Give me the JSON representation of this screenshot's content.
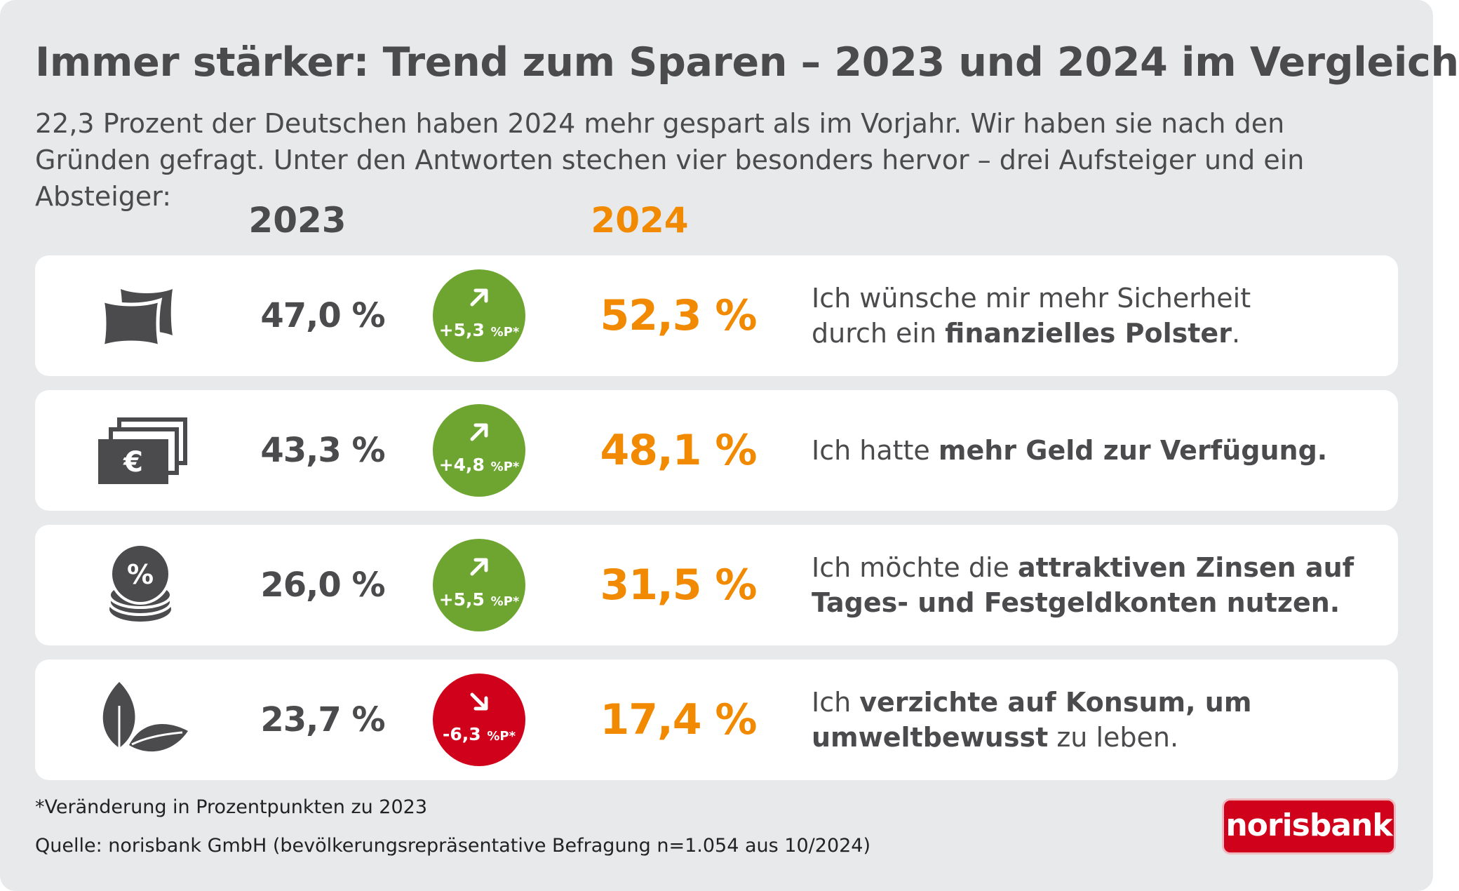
{
  "colors": {
    "background": "#e8e9eb",
    "text": "#4b4b4d",
    "accent_2024": "#f18a00",
    "increase": "#6da530",
    "decrease": "#d0021b",
    "brand": "#d0021b"
  },
  "header": {
    "title": "Immer stärker: Trend zum Sparen – 2023 und 2024 im Vergleich",
    "subtitle": "22,3 Prozent der Deutschen haben 2024 mehr gespart als im Vorjahr. Wir haben sie nach den Gründen gefragt. Unter den Antworten stechen vier besonders hervor – drei Aufsteiger und ein Absteiger:"
  },
  "columns": {
    "year_a": "2023",
    "year_b": "2024"
  },
  "rows": [
    {
      "icon": "pillow-icon",
      "value_2023": "47,0 %",
      "change": "+5,3",
      "change_unit": "%P*",
      "direction": "up",
      "value_2024": "52,3 %",
      "reason_line1_parts": [
        "Ich wünsche mir mehr Sicherheit"
      ],
      "reason_line2_parts": [
        "durch ein ",
        "finanzielles Polster",
        "."
      ]
    },
    {
      "icon": "euro-banknotes-icon",
      "value_2023": "43,3 %",
      "change": "+4,8",
      "change_unit": "%P*",
      "direction": "up",
      "value_2024": "48,1 %",
      "reason_line1_parts": [
        "Ich hatte ",
        "mehr Geld zur Verfügung."
      ]
    },
    {
      "icon": "percent-coins-icon",
      "value_2023": "26,0 %",
      "change": "+5,5",
      "change_unit": "%P*",
      "direction": "up",
      "value_2024": "31,5 %",
      "reason_line1_parts": [
        "Ich möchte die ",
        "attraktiven Zinsen auf"
      ],
      "reason_line2_parts": [
        "Tages- und Festgeldkonten nutzen."
      ]
    },
    {
      "icon": "leaves-icon",
      "value_2023": "23,7 %",
      "change": "-6,3",
      "change_unit": "%P*",
      "direction": "down",
      "value_2024": "17,4 %",
      "reason_line1_parts": [
        "Ich ",
        "verzichte auf Konsum, um"
      ],
      "reason_line2_parts": [
        "umweltbewusst",
        " zu leben."
      ]
    }
  ],
  "chart_data": {
    "type": "table",
    "title": "Immer stärker: Trend zum Sparen – 2023 und 2024 im Vergleich",
    "unit": "%",
    "series": [
      {
        "name": "2023",
        "values": [
          47.0,
          43.3,
          26.0,
          23.7
        ]
      },
      {
        "name": "2024",
        "values": [
          52.3,
          48.1,
          31.5,
          17.4
        ]
      },
      {
        "name": "Veränderung (Prozentpunkte)",
        "values": [
          5.3,
          4.8,
          5.5,
          -6.3
        ]
      }
    ],
    "categories": [
      "Ich wünsche mir mehr Sicherheit durch ein finanzielles Polster.",
      "Ich hatte mehr Geld zur Verfügung.",
      "Ich möchte die attraktiven Zinsen auf Tages- und Festgeldkonten nutzen.",
      "Ich verzichte auf Konsum, um umweltbewusst zu leben."
    ]
  },
  "footer": {
    "footnote": "*Veränderung in Prozentpunkten zu 2023",
    "source": "Quelle: norisbank GmbH (bevölkerungsrepräsentative Befragung n=1.054 aus 10/2024)",
    "logo_text": "norisbank"
  }
}
